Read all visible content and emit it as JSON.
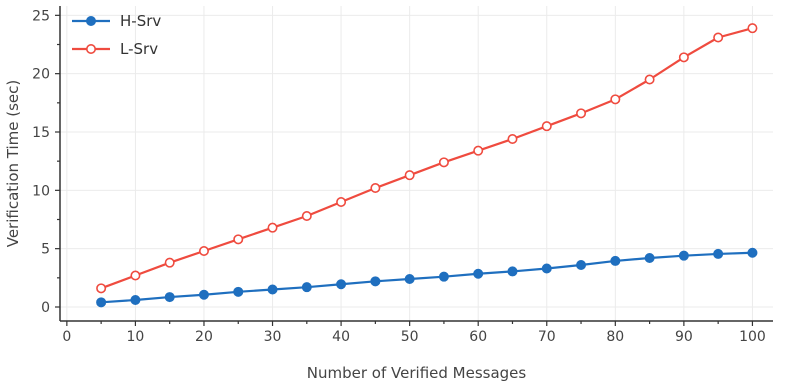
{
  "chart_data": {
    "type": "line",
    "title": "",
    "xlabel": "Number of Verified Messages",
    "ylabel": "Verification Time (sec)",
    "xlim": [
      -1,
      103
    ],
    "ylim": [
      -1.2,
      25.8
    ],
    "x_ticks": [
      0,
      10,
      20,
      30,
      40,
      50,
      60,
      70,
      80,
      90,
      100
    ],
    "y_ticks": [
      0,
      5,
      10,
      15,
      20,
      25
    ],
    "grid": true,
    "legend_position": "top-left",
    "x": [
      5,
      10,
      15,
      20,
      25,
      30,
      35,
      40,
      45,
      50,
      55,
      60,
      65,
      70,
      75,
      80,
      85,
      90,
      95,
      100
    ],
    "series": [
      {
        "name": "H-Srv",
        "color": "#1f6fbf",
        "marker": "filled-circle",
        "values": [
          0.4,
          0.6,
          0.85,
          1.05,
          1.3,
          1.5,
          1.7,
          1.95,
          2.2,
          2.4,
          2.6,
          2.85,
          3.05,
          3.3,
          3.6,
          3.95,
          4.2,
          4.4,
          4.55,
          4.65
        ]
      },
      {
        "name": "L-Srv",
        "color": "#ef4b3f",
        "marker": "open-circle",
        "values": [
          1.6,
          2.7,
          3.8,
          4.8,
          5.8,
          6.8,
          7.8,
          9.0,
          10.2,
          11.3,
          12.4,
          13.4,
          14.4,
          15.5,
          16.6,
          17.8,
          19.5,
          21.4,
          23.1,
          23.9
        ]
      }
    ]
  }
}
